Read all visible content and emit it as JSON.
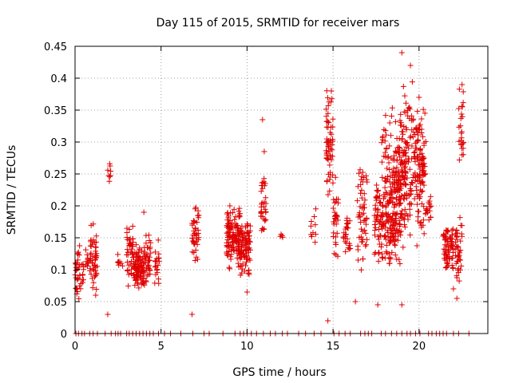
{
  "chart_data": {
    "type": "scatter",
    "title": "Day 115 of 2015, SRMTID for receiver mars",
    "xlabel": "GPS time / hours",
    "ylabel": "SRMTID / TECUs",
    "xlim": [
      0,
      24
    ],
    "ylim": [
      0,
      0.45
    ],
    "xticks": [
      0,
      5,
      10,
      15,
      20
    ],
    "xtick_labels": [
      "0",
      "5",
      "10",
      "15",
      "20"
    ],
    "yticks": [
      0,
      0.05,
      0.1,
      0.15,
      0.2,
      0.25,
      0.3,
      0.35,
      0.4,
      0.45
    ],
    "ytick_labels": [
      "0",
      "0.05",
      "0.1",
      "0.15",
      "0.2",
      "0.25",
      "0.3",
      "0.35",
      "0.4",
      "0.45"
    ],
    "grid": true,
    "marker": "+",
    "color": "#e00000",
    "series": [
      {
        "name": "SRMTID",
        "clusters": [
          {
            "x": [
              0.0,
              0.5
            ],
            "y": [
              0.05,
              0.14
            ],
            "n": 40
          },
          {
            "x": [
              0.6,
              0.9
            ],
            "y": [
              0.09,
              0.14
            ],
            "n": 15
          },
          {
            "x": [
              0.9,
              1.3
            ],
            "y": [
              0.05,
              0.185
            ],
            "n": 45
          },
          {
            "x": [
              1.9,
              2.1
            ],
            "y": [
              0.23,
              0.275
            ],
            "n": 8
          },
          {
            "x": [
              2.4,
              2.8
            ],
            "y": [
              0.09,
              0.13
            ],
            "n": 8
          },
          {
            "x": [
              3.0,
              3.4
            ],
            "y": [
              0.07,
              0.17
            ],
            "n": 40
          },
          {
            "x": [
              3.4,
              4.1
            ],
            "y": [
              0.07,
              0.14
            ],
            "n": 110
          },
          {
            "x": [
              4.1,
              4.4
            ],
            "y": [
              0.07,
              0.16
            ],
            "n": 30
          },
          {
            "x": [
              4.6,
              4.9
            ],
            "y": [
              0.07,
              0.15
            ],
            "n": 20
          },
          {
            "x": [
              6.8,
              7.2
            ],
            "y": [
              0.1,
              0.21
            ],
            "n": 40
          },
          {
            "x": [
              8.8,
              9.6
            ],
            "y": [
              0.1,
              0.2
            ],
            "n": 120
          },
          {
            "x": [
              9.6,
              10.2
            ],
            "y": [
              0.08,
              0.19
            ],
            "n": 90
          },
          {
            "x": [
              10.8,
              11.1
            ],
            "y": [
              0.14,
              0.26
            ],
            "n": 35
          },
          {
            "x": [
              11.9,
              12.1
            ],
            "y": [
              0.145,
              0.16
            ],
            "n": 4
          },
          {
            "x": [
              13.7,
              14.0
            ],
            "y": [
              0.13,
              0.21
            ],
            "n": 10
          },
          {
            "x": [
              14.6,
              15.0
            ],
            "y": [
              0.2,
              0.39
            ],
            "n": 60
          },
          {
            "x": [
              15.0,
              15.3
            ],
            "y": [
              0.1,
              0.26
            ],
            "n": 30
          },
          {
            "x": [
              15.6,
              16.0
            ],
            "y": [
              0.12,
              0.2
            ],
            "n": 25
          },
          {
            "x": [
              16.4,
              17.0
            ],
            "y": [
              0.09,
              0.26
            ],
            "n": 55
          },
          {
            "x": [
              17.4,
              18.4
            ],
            "y": [
              0.1,
              0.25
            ],
            "n": 120
          },
          {
            "x": [
              17.8,
              18.8
            ],
            "y": [
              0.15,
              0.36
            ],
            "n": 70
          },
          {
            "x": [
              18.4,
              19.2
            ],
            "y": [
              0.1,
              0.3
            ],
            "n": 110
          },
          {
            "x": [
              18.8,
              19.8
            ],
            "y": [
              0.15,
              0.4
            ],
            "n": 140
          },
          {
            "x": [
              19.8,
              20.4
            ],
            "y": [
              0.12,
              0.37
            ],
            "n": 100
          },
          {
            "x": [
              20.4,
              20.8
            ],
            "y": [
              0.17,
              0.22
            ],
            "n": 15
          },
          {
            "x": [
              21.4,
              22.0
            ],
            "y": [
              0.09,
              0.17
            ],
            "n": 70
          },
          {
            "x": [
              22.1,
              22.5
            ],
            "y": [
              0.08,
              0.19
            ],
            "n": 40
          },
          {
            "x": [
              22.3,
              22.6
            ],
            "y": [
              0.25,
              0.39
            ],
            "n": 25
          }
        ],
        "points": [
          [
            1.2,
            0.06
          ],
          [
            1.9,
            0.03
          ],
          [
            6.8,
            0.03
          ],
          [
            10.0,
            0.065
          ],
          [
            10.9,
            0.335
          ],
          [
            11.0,
            0.285
          ],
          [
            14.7,
            0.02
          ],
          [
            16.3,
            0.05
          ],
          [
            17.6,
            0.045
          ],
          [
            19.0,
            0.045
          ],
          [
            19.0,
            0.44
          ],
          [
            19.5,
            0.42
          ],
          [
            22.0,
            0.07
          ],
          [
            22.2,
            0.055
          ],
          [
            4.0,
            0.19
          ],
          [
            9.0,
            0.2
          ],
          [
            18.3,
            0.33
          ],
          [
            20.0,
            0.37
          ],
          [
            14.9,
            0.38
          ],
          [
            22.5,
            0.39
          ]
        ],
        "baseline_x": [
          0.05,
          0.2,
          0.4,
          0.55,
          0.85,
          1.05,
          1.3,
          1.75,
          2.1,
          2.35,
          2.5,
          2.65,
          3.0,
          3.15,
          3.35,
          3.55,
          3.75,
          3.95,
          4.15,
          4.35,
          4.55,
          4.85,
          5.2,
          5.55,
          6.15,
          6.85,
          7.5,
          7.8,
          8.6,
          9.3,
          9.6,
          9.8,
          10.0,
          10.25,
          10.55,
          10.95,
          11.35,
          11.65,
          12.05,
          12.35,
          13.0,
          13.4,
          13.9,
          14.3,
          15.05,
          15.35,
          15.7,
          16.0,
          16.6,
          16.85,
          17.05,
          17.25,
          17.8,
          18.05,
          18.4,
          18.7,
          19.0,
          19.3,
          19.5,
          19.8,
          20.05,
          20.55,
          20.75,
          21.0,
          21.2,
          21.4,
          21.6,
          22.0,
          22.3,
          22.9
        ]
      }
    ]
  }
}
